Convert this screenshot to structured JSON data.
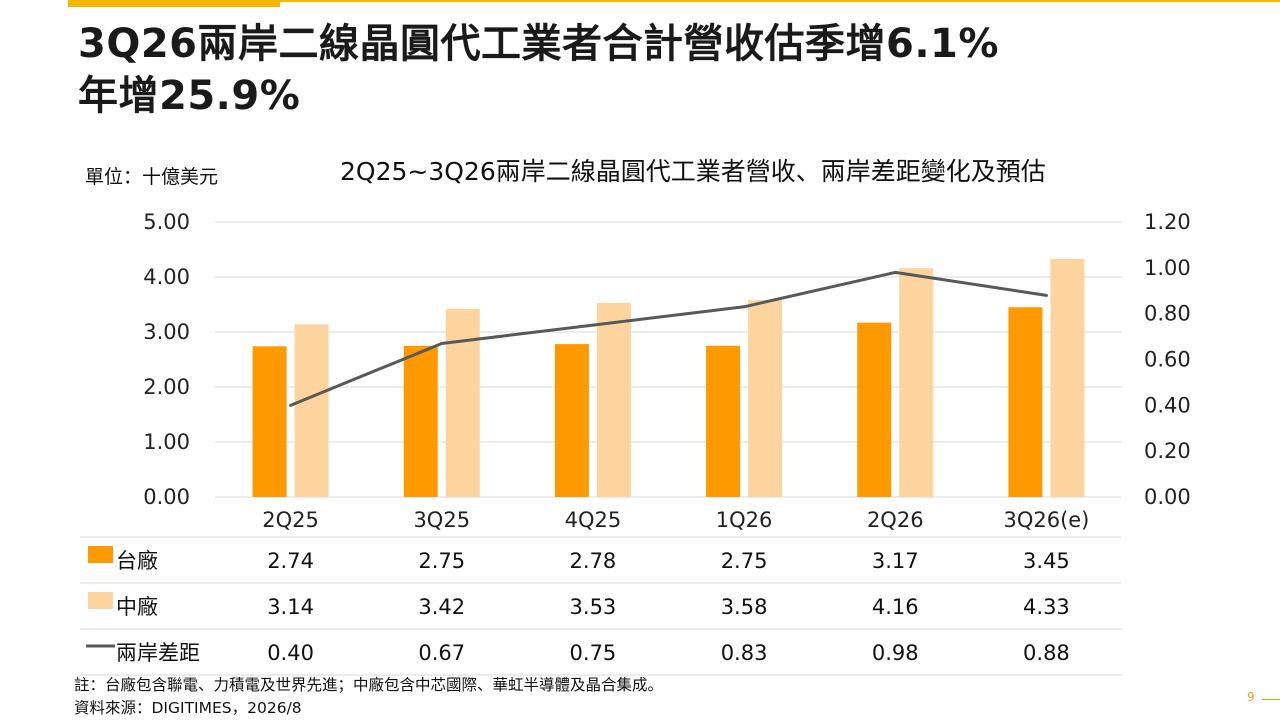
{
  "slide": {
    "title_line1": "3Q26兩岸二線晶圓代工業者合計營收估季增6.1%",
    "title_line2": "年增25.9%",
    "unit_label": "單位：十億美元",
    "note": "註：台廠包含聯電、力積電及世界先進；中廠包含中芯國際、華虹半導體及晶合集成。",
    "source": "資料來源：DIGITIMES，2026/8",
    "page_number": "9"
  },
  "colors": {
    "accent": "#f5b800",
    "taiwan": "#ff9900",
    "china": "#fdd49e",
    "gap_line": "#595959",
    "grid": "#d9d9d9"
  },
  "chart_data": {
    "type": "bar",
    "title": "2Q25~3Q26兩岸二線晶圓代工業者營收、兩岸差距變化及預估",
    "categories": [
      "2Q25",
      "3Q25",
      "4Q25",
      "1Q26",
      "2Q26",
      "3Q26(e)"
    ],
    "series": [
      {
        "name": "台廠",
        "type": "bar",
        "axis": "left",
        "values": [
          2.74,
          2.75,
          2.78,
          2.75,
          3.17,
          3.45
        ]
      },
      {
        "name": "中廠",
        "type": "bar",
        "axis": "left",
        "values": [
          3.14,
          3.42,
          3.53,
          3.58,
          4.16,
          4.33
        ]
      },
      {
        "name": "兩岸差距",
        "type": "line",
        "axis": "right",
        "values": [
          0.4,
          0.67,
          0.75,
          0.83,
          0.98,
          0.88
        ]
      }
    ],
    "y_left": {
      "ticks": [
        "0.00",
        "1.00",
        "2.00",
        "3.00",
        "4.00",
        "5.00"
      ],
      "min": 0,
      "max": 5
    },
    "y_right": {
      "ticks": [
        "0.00",
        "0.20",
        "0.40",
        "0.60",
        "0.80",
        "1.00",
        "1.20"
      ],
      "min": 0,
      "max": 1.2
    },
    "grid": true,
    "legend": "data-table-below"
  }
}
